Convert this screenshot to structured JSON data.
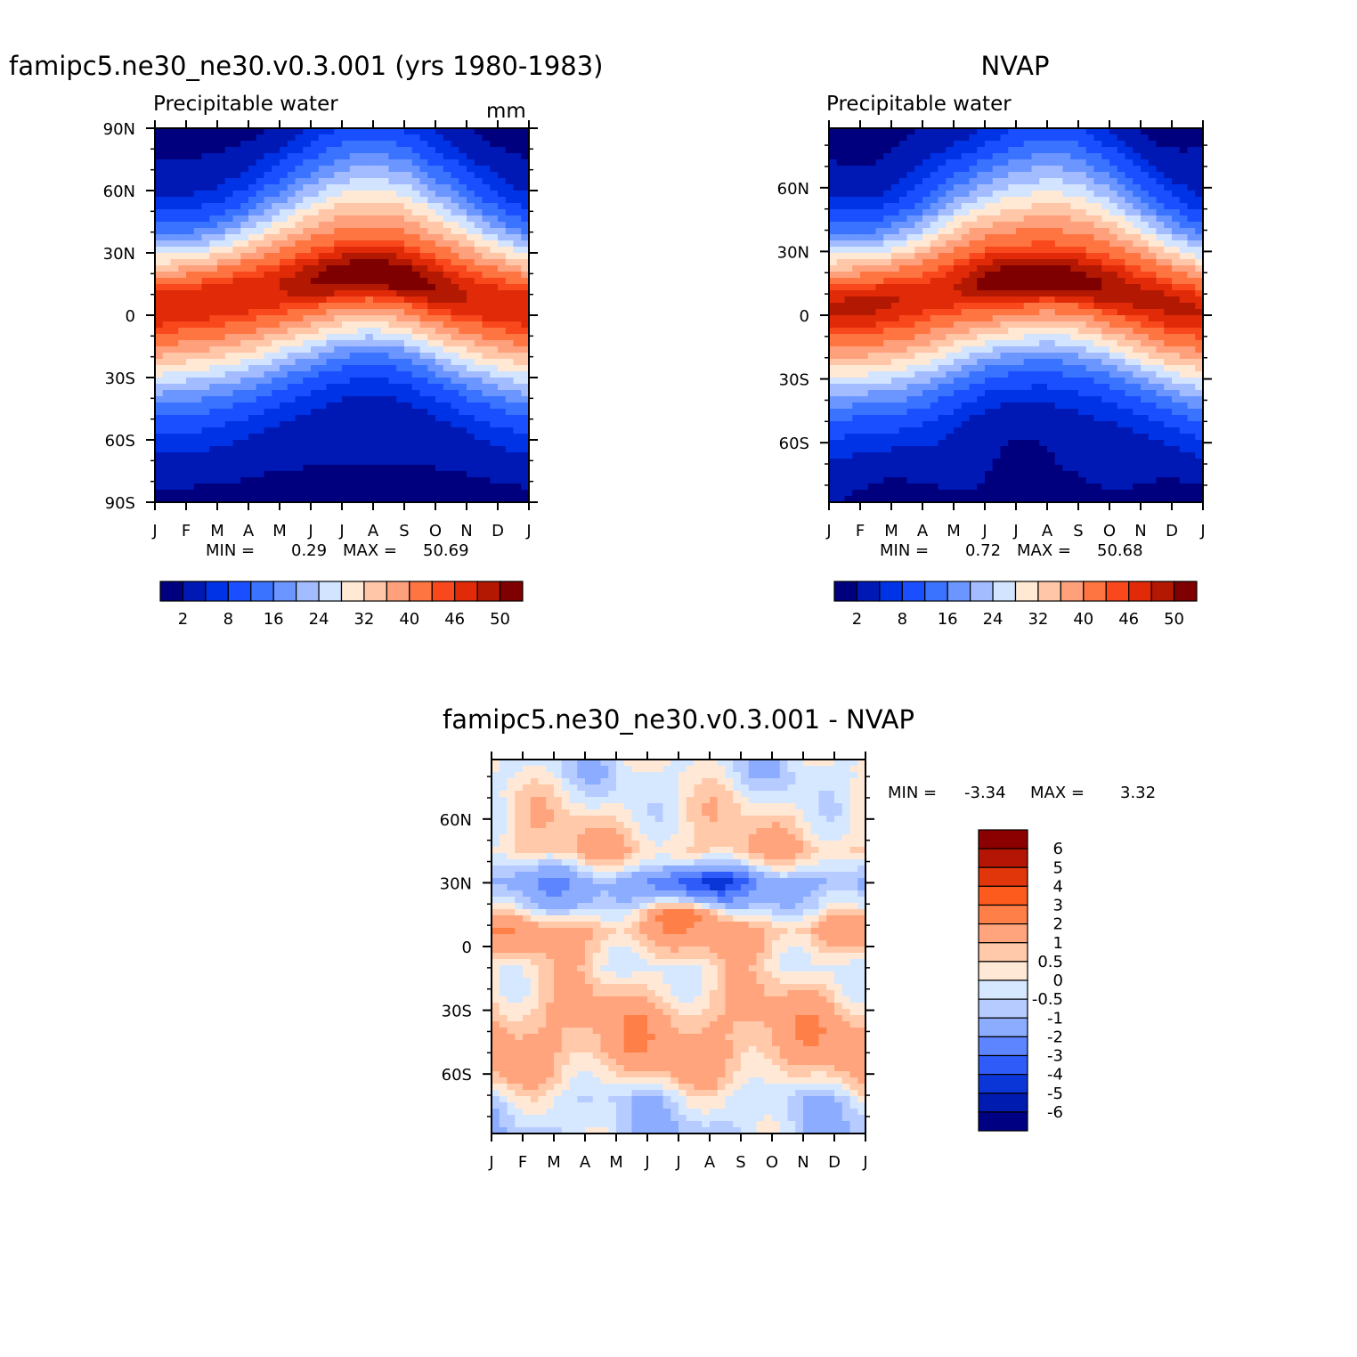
{
  "chart_data": [
    {
      "type": "heatmap",
      "id": "model",
      "title": "famipc5.ne30_ne30.v0.3.001 (yrs 1980-1983)",
      "subtitle": "Precipitable water",
      "units": "mm",
      "x_categories": [
        "J",
        "F",
        "M",
        "A",
        "M",
        "J",
        "J",
        "A",
        "S",
        "O",
        "N",
        "D",
        "J"
      ],
      "y_ticks": [
        "90N",
        "60N",
        "30N",
        "0",
        "30S",
        "60S",
        "90S"
      ],
      "y_tick_lat": [
        90,
        60,
        30,
        0,
        -30,
        -60,
        -90
      ],
      "ylim": [
        -90,
        90
      ],
      "stats": {
        "min_label": "MIN =",
        "min": "0.29",
        "max_label": "MAX =",
        "max": "50.69"
      },
      "colorbar_labels": [
        "2",
        "8",
        "16",
        "24",
        "32",
        "40",
        "46",
        "50"
      ],
      "field": {
        "peak_lat": [
          4,
          6,
          8,
          10,
          13,
          16,
          19,
          20,
          18,
          13,
          9,
          6
        ],
        "max": 50.69,
        "min": 0.29,
        "warm_peak_month": 7
      }
    },
    {
      "type": "heatmap",
      "id": "obs",
      "title": "NVAP",
      "subtitle": "Precipitable water",
      "x_categories": [
        "J",
        "F",
        "M",
        "A",
        "M",
        "J",
        "J",
        "A",
        "S",
        "O",
        "N",
        "D",
        "J"
      ],
      "y_ticks": [
        "60N",
        "30N",
        "0",
        "30S",
        "60S"
      ],
      "y_tick_lat": [
        60,
        30,
        0,
        -30,
        -60
      ],
      "ylim": [
        -88,
        88
      ],
      "stats": {
        "min_label": "MIN =",
        "min": "0.72",
        "max_label": "MAX =",
        "max": "50.68"
      },
      "colorbar_labels": [
        "2",
        "8",
        "16",
        "24",
        "32",
        "40",
        "46",
        "50"
      ],
      "field": {
        "peak_lat": [
          3,
          5,
          7,
          9,
          12,
          15,
          17,
          18,
          16,
          12,
          8,
          5
        ],
        "max": 50.68,
        "min": 0.72,
        "warm_peak_month": 7
      }
    },
    {
      "type": "heatmap",
      "id": "diff",
      "title": "famipc5.ne30_ne30.v0.3.001 - NVAP",
      "x_categories": [
        "J",
        "F",
        "M",
        "A",
        "M",
        "J",
        "J",
        "A",
        "S",
        "O",
        "N",
        "D",
        "J"
      ],
      "y_ticks": [
        "60N",
        "30N",
        "0",
        "30S",
        "60S"
      ],
      "y_tick_lat": [
        60,
        30,
        0,
        -30,
        -60
      ],
      "ylim": [
        -88,
        88
      ],
      "stats": {
        "min_label": "MIN =",
        "min": "-3.34",
        "max_label": "MAX =",
        "max": "3.32"
      },
      "colorbar_labels": [
        "6",
        "5",
        "4",
        "3",
        "2",
        "1",
        "0.5",
        "0",
        "-0.5",
        "-1",
        "-2",
        "-3",
        "-4",
        "-5",
        "-6"
      ],
      "field": {
        "bands": [
          {
            "lat": 80,
            "value": -0.3
          },
          {
            "lat": 60,
            "value": 0.4
          },
          {
            "lat": 45,
            "value": 0.8
          },
          {
            "lat": 30,
            "value": -1.5
          },
          {
            "lat": 20,
            "value": -0.8
          },
          {
            "lat": 8,
            "value": 1.4
          },
          {
            "lat": 0,
            "value": 0.9
          },
          {
            "lat": -10,
            "value": 0.2
          },
          {
            "lat": -20,
            "value": 0.6
          },
          {
            "lat": -35,
            "value": 1.3
          },
          {
            "lat": -50,
            "value": 1.4
          },
          {
            "lat": -62,
            "value": 0.6
          },
          {
            "lat": -72,
            "value": -0.4
          },
          {
            "lat": -85,
            "value": -0.7
          }
        ]
      }
    }
  ],
  "palettes": {
    "precip": [
      "#00007f",
      "#0019b5",
      "#0033e6",
      "#1a4fff",
      "#3a73ff",
      "#6b95ff",
      "#a2bcff",
      "#d2e4ff",
      "#ffe8d4",
      "#ffc6a8",
      "#ffa07c",
      "#ff7542",
      "#f8481c",
      "#e02a08",
      "#b31802",
      "#7f0000"
    ],
    "diff": [
      "#8b0000",
      "#b51505",
      "#e0360a",
      "#fd5a1e",
      "#ff7f48",
      "#ffa47c",
      "#ffc9aa",
      "#ffe9d6",
      "#d6e8ff",
      "#b6cbff",
      "#8bacff",
      "#5c85ff",
      "#2f5cf9",
      "#0a36d8",
      "#001bb0",
      "#000082"
    ]
  }
}
